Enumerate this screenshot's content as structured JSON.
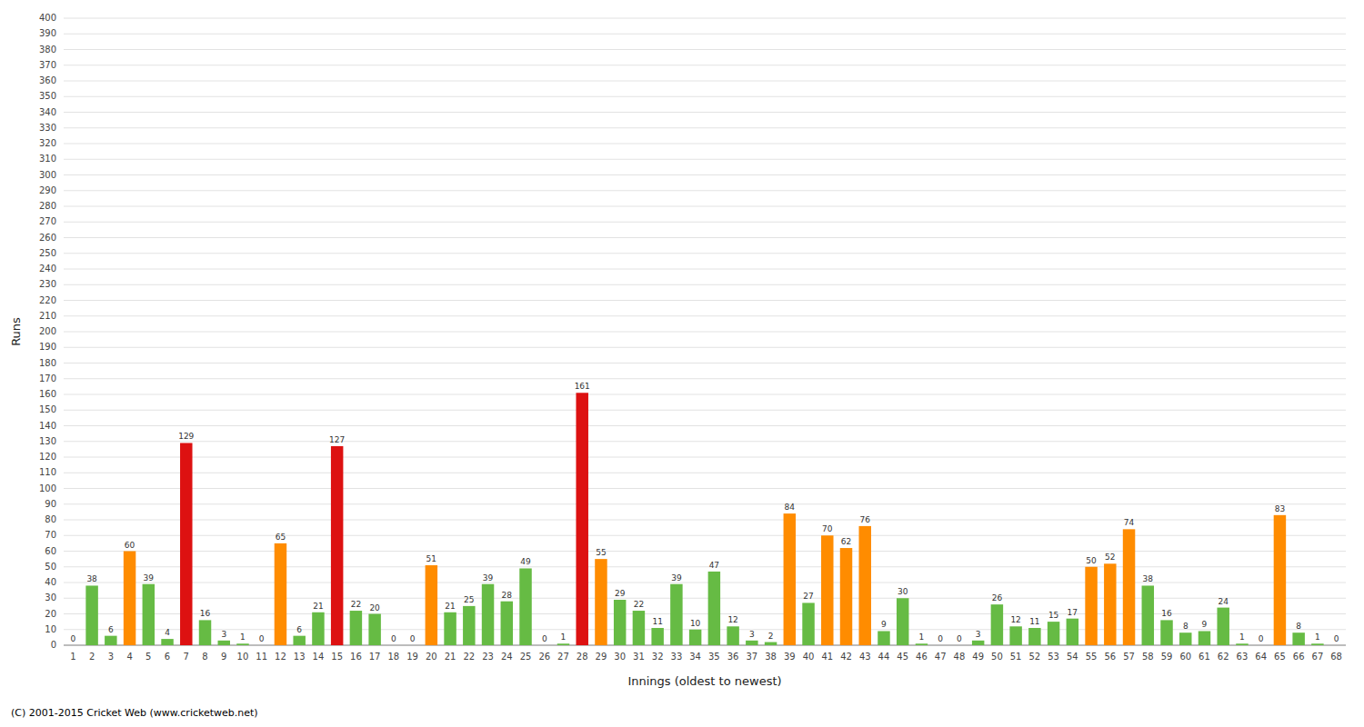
{
  "chart_data": {
    "type": "bar",
    "xlabel": "Innings (oldest to newest)",
    "ylabel": "Runs",
    "annotations": [
      "(C) 2001-2015 Cricket Web (www.cricketweb.net)"
    ],
    "categories": [
      "1",
      "2",
      "3",
      "4",
      "5",
      "6",
      "7",
      "8",
      "9",
      "10",
      "11",
      "12",
      "13",
      "14",
      "15",
      "16",
      "17",
      "18",
      "19",
      "20",
      "21",
      "22",
      "23",
      "24",
      "25",
      "26",
      "27",
      "28",
      "29",
      "30",
      "31",
      "32",
      "33",
      "34",
      "35",
      "36",
      "37",
      "38",
      "39",
      "40",
      "41",
      "42",
      "43",
      "44",
      "45",
      "46",
      "47",
      "48",
      "49",
      "50",
      "51",
      "52",
      "53",
      "54",
      "55",
      "56",
      "57",
      "58",
      "59",
      "60",
      "61",
      "62",
      "63",
      "64",
      "65",
      "66",
      "67",
      "68"
    ],
    "values": [
      0,
      38,
      6,
      60,
      39,
      4,
      129,
      16,
      3,
      1,
      0,
      65,
      6,
      21,
      127,
      22,
      20,
      0,
      0,
      51,
      21,
      25,
      39,
      28,
      49,
      0,
      1,
      161,
      55,
      29,
      22,
      11,
      39,
      10,
      47,
      12,
      3,
      2,
      84,
      27,
      70,
      62,
      76,
      9,
      30,
      1,
      0,
      0,
      3,
      26,
      12,
      11,
      15,
      17,
      50,
      52,
      74,
      38,
      16,
      8,
      9,
      24,
      1,
      0,
      83,
      8,
      1,
      0
    ],
    "colors": [
      "#66bb44",
      "#66bb44",
      "#66bb44",
      "#ff8c00",
      "#66bb44",
      "#66bb44",
      "#dd1111",
      "#66bb44",
      "#66bb44",
      "#66bb44",
      "#66bb44",
      "#ff8c00",
      "#66bb44",
      "#66bb44",
      "#dd1111",
      "#66bb44",
      "#66bb44",
      "#66bb44",
      "#66bb44",
      "#ff8c00",
      "#66bb44",
      "#66bb44",
      "#66bb44",
      "#66bb44",
      "#66bb44",
      "#66bb44",
      "#66bb44",
      "#dd1111",
      "#ff8c00",
      "#66bb44",
      "#66bb44",
      "#66bb44",
      "#66bb44",
      "#66bb44",
      "#66bb44",
      "#66bb44",
      "#66bb44",
      "#66bb44",
      "#ff8c00",
      "#66bb44",
      "#ff8c00",
      "#ff8c00",
      "#ff8c00",
      "#66bb44",
      "#66bb44",
      "#66bb44",
      "#66bb44",
      "#66bb44",
      "#66bb44",
      "#66bb44",
      "#66bb44",
      "#66bb44",
      "#66bb44",
      "#66bb44",
      "#ff8c00",
      "#ff8c00",
      "#ff8c00",
      "#66bb44",
      "#66bb44",
      "#66bb44",
      "#66bb44",
      "#66bb44",
      "#66bb44",
      "#66bb44",
      "#ff8c00",
      "#66bb44",
      "#66bb44",
      "#66bb44"
    ],
    "ylim": [
      0,
      400
    ],
    "yticks": [
      0,
      10,
      20,
      30,
      40,
      50,
      60,
      70,
      80,
      90,
      100,
      110,
      120,
      130,
      140,
      150,
      160,
      170,
      180,
      190,
      200,
      210,
      220,
      230,
      240,
      250,
      260,
      270,
      280,
      290,
      300,
      310,
      320,
      330,
      340,
      350,
      360,
      370,
      380,
      390,
      400
    ],
    "grid": true,
    "data_labels": true
  }
}
